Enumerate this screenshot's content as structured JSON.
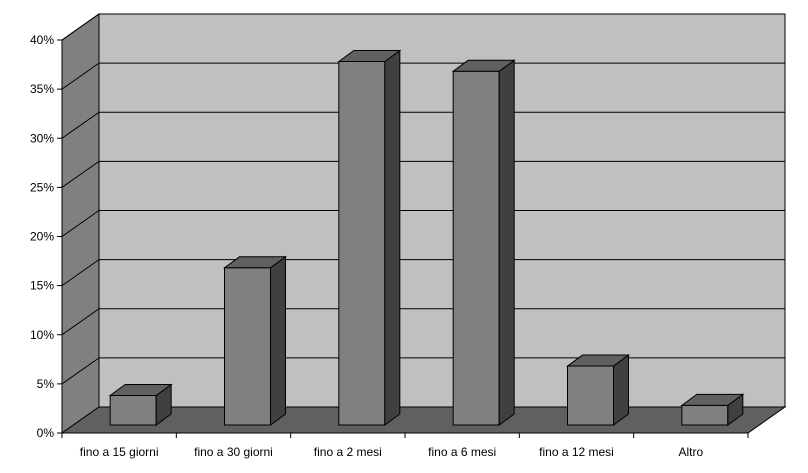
{
  "chart_data": {
    "type": "bar",
    "title": "",
    "xlabel": "",
    "ylabel": "",
    "categories": [
      "fino a 15 giorni",
      "fino a 30 giorni",
      "fino a 2 mesi",
      "fino a 6 mesi",
      "fino a 12 mesi",
      "Altro"
    ],
    "values": [
      3,
      16,
      37,
      36,
      6,
      2
    ],
    "ylim": [
      0,
      40
    ],
    "y_ticks": [
      0,
      5,
      10,
      15,
      20,
      25,
      30,
      35,
      40
    ],
    "y_tick_labels": [
      "0%",
      "5%",
      "10%",
      "15%",
      "20%",
      "25%",
      "30%",
      "35%",
      "40%"
    ],
    "grid": true,
    "legend": "none",
    "style": "3d-column",
    "colors": {
      "background": "#ffffff",
      "back_wall": "#c0c0c0",
      "side_wall": "#808080",
      "floor": "#606060",
      "bar_front": "#808080",
      "bar_top": "#606060",
      "bar_side": "#404040",
      "outline": "#000000"
    }
  }
}
